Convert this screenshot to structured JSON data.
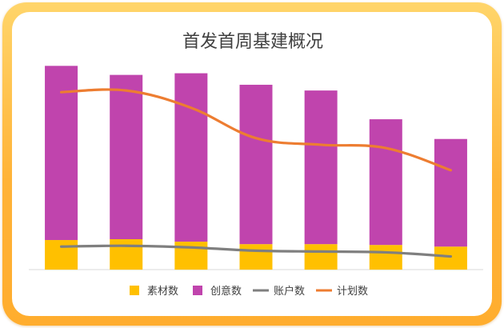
{
  "chart_data": {
    "type": "bar",
    "title": "首发首周基建概况",
    "categories": [
      "",
      "",
      "",
      "",
      "",
      "",
      ""
    ],
    "series": [
      {
        "name": "素材数",
        "kind": "stacked-bar",
        "color": "#ffc000",
        "values": [
          36,
          37,
          34,
          31,
          31,
          30,
          28
        ]
      },
      {
        "name": "创意数",
        "kind": "stacked-bar",
        "color": "#c044ad",
        "values": [
          212,
          200,
          205,
          194,
          187,
          153,
          131
        ]
      },
      {
        "name": "账户数",
        "kind": "line",
        "color": "#7f7f7f",
        "values": [
          28,
          29,
          27,
          23,
          22,
          21,
          16
        ]
      },
      {
        "name": "计划数",
        "kind": "line",
        "color": "#ed7d31",
        "values": [
          216,
          218,
          197,
          160,
          152,
          148,
          121
        ]
      }
    ],
    "ylim": [
      0,
      260
    ],
    "grid": false,
    "legend_position": "bottom"
  }
}
